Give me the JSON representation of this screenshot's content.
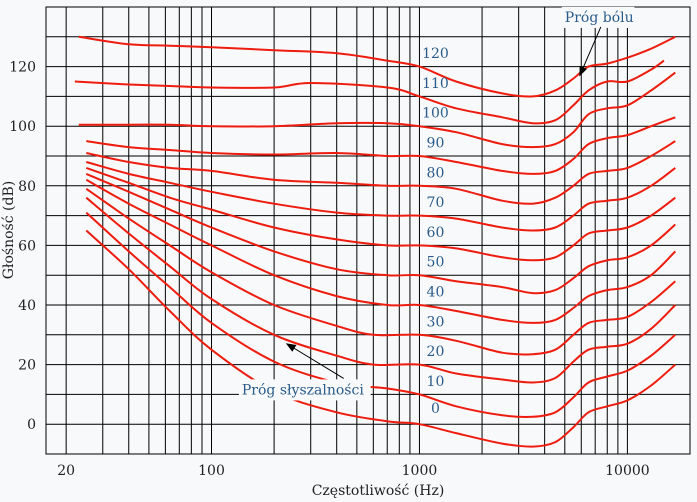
{
  "chart_data": {
    "type": "line",
    "title": "",
    "xlabel": "Częstotliwość (Hz)",
    "ylabel": "Głośność (dB)",
    "x_scale": "log",
    "xlim": [
      16,
      20000
    ],
    "ylim": [
      -10,
      140
    ],
    "x_ticks": [
      {
        "value": 20,
        "label": "20"
      },
      {
        "value": 100,
        "label": "100"
      },
      {
        "value": 1000,
        "label": "1000"
      },
      {
        "value": 10000,
        "label": "10000"
      }
    ],
    "y_ticks": [
      {
        "value": 0,
        "label": "0"
      },
      {
        "value": 20,
        "label": "20"
      },
      {
        "value": 40,
        "label": "40"
      },
      {
        "value": 60,
        "label": "60"
      },
      {
        "value": 80,
        "label": "80"
      },
      {
        "value": 100,
        "label": "100"
      },
      {
        "value": 120,
        "label": "120"
      }
    ],
    "grid": true,
    "line_color": "#ee1c0e",
    "label_color": "#2a5b8a",
    "series": [
      {
        "name": "0",
        "label_at": [
          1000,
          2.5
        ],
        "points": [
          [
            25,
            65
          ],
          [
            40,
            52
          ],
          [
            63,
            38
          ],
          [
            100,
            25
          ],
          [
            200,
            11
          ],
          [
            400,
            4
          ],
          [
            700,
            1
          ],
          [
            1000,
            0
          ],
          [
            1500,
            -3
          ],
          [
            2500,
            -6.5
          ],
          [
            3500,
            -7.5
          ],
          [
            4500,
            -6
          ],
          [
            5500,
            -1
          ],
          [
            6500,
            4
          ],
          [
            8000,
            6
          ],
          [
            10000,
            8
          ],
          [
            13000,
            13
          ],
          [
            17000,
            20
          ]
        ]
      },
      {
        "name": "10",
        "label_at": [
          1000,
          11.5
        ],
        "points": [
          [
            25,
            71
          ],
          [
            40,
            58
          ],
          [
            63,
            46
          ],
          [
            100,
            34
          ],
          [
            200,
            21
          ],
          [
            400,
            14
          ],
          [
            700,
            12
          ],
          [
            1000,
            10
          ],
          [
            1500,
            6
          ],
          [
            2500,
            3
          ],
          [
            3500,
            2.5
          ],
          [
            4500,
            4
          ],
          [
            5500,
            9
          ],
          [
            6500,
            14
          ],
          [
            8000,
            16
          ],
          [
            10000,
            18
          ],
          [
            13000,
            23
          ],
          [
            17000,
            30
          ]
        ]
      },
      {
        "name": "20",
        "label_at": [
          1000,
          21.5
        ],
        "points": [
          [
            25,
            76
          ],
          [
            40,
            64
          ],
          [
            63,
            53
          ],
          [
            100,
            42
          ],
          [
            200,
            30
          ],
          [
            400,
            23
          ],
          [
            600,
            20
          ],
          [
            1000,
            20
          ],
          [
            1500,
            17
          ],
          [
            2500,
            15
          ],
          [
            3500,
            14
          ],
          [
            4500,
            15.5
          ],
          [
            5500,
            21
          ],
          [
            6500,
            25
          ],
          [
            8000,
            26
          ],
          [
            10000,
            27
          ],
          [
            13000,
            32
          ],
          [
            17000,
            40
          ]
        ]
      },
      {
        "name": "30",
        "label_at": [
          1000,
          31.5
        ],
        "points": [
          [
            25,
            79
          ],
          [
            40,
            69
          ],
          [
            63,
            60
          ],
          [
            100,
            51
          ],
          [
            200,
            40
          ],
          [
            400,
            33
          ],
          [
            600,
            30
          ],
          [
            1000,
            30
          ],
          [
            1500,
            28
          ],
          [
            2500,
            24
          ],
          [
            3500,
            23.5
          ],
          [
            4500,
            25
          ],
          [
            5500,
            30
          ],
          [
            6500,
            34
          ],
          [
            8000,
            35
          ],
          [
            10000,
            36
          ],
          [
            13000,
            41
          ],
          [
            17000,
            48
          ]
        ]
      },
      {
        "name": "40",
        "label_at": [
          1000,
          41.5
        ],
        "points": [
          [
            25,
            82
          ],
          [
            40,
            74
          ],
          [
            63,
            67
          ],
          [
            100,
            60
          ],
          [
            200,
            50
          ],
          [
            400,
            43
          ],
          [
            700,
            40
          ],
          [
            1000,
            40
          ],
          [
            1500,
            38
          ],
          [
            2500,
            35
          ],
          [
            3500,
            34
          ],
          [
            4500,
            35
          ],
          [
            5500,
            39
          ],
          [
            6500,
            43
          ],
          [
            8000,
            45
          ],
          [
            10000,
            46
          ],
          [
            13000,
            50
          ],
          [
            17000,
            58
          ]
        ]
      },
      {
        "name": "50",
        "label_at": [
          1000,
          51.5
        ],
        "points": [
          [
            25,
            84
          ],
          [
            40,
            78
          ],
          [
            63,
            72
          ],
          [
            100,
            66
          ],
          [
            200,
            58
          ],
          [
            400,
            52
          ],
          [
            700,
            50
          ],
          [
            1000,
            50
          ],
          [
            1500,
            48
          ],
          [
            2500,
            46
          ],
          [
            3500,
            44
          ],
          [
            4500,
            45
          ],
          [
            5500,
            49
          ],
          [
            6500,
            53
          ],
          [
            8000,
            55
          ],
          [
            10000,
            56
          ],
          [
            13000,
            60
          ],
          [
            17000,
            67
          ]
        ]
      },
      {
        "name": "60",
        "label_at": [
          1000,
          61.5
        ],
        "points": [
          [
            25,
            86
          ],
          [
            40,
            81
          ],
          [
            63,
            76
          ],
          [
            100,
            72
          ],
          [
            200,
            66
          ],
          [
            400,
            62
          ],
          [
            700,
            60
          ],
          [
            1000,
            60
          ],
          [
            1500,
            59
          ],
          [
            2500,
            56
          ],
          [
            3500,
            55
          ],
          [
            4500,
            56
          ],
          [
            5500,
            60
          ],
          [
            6500,
            64
          ],
          [
            8000,
            65
          ],
          [
            10000,
            66
          ],
          [
            13000,
            70
          ],
          [
            17000,
            76
          ]
        ]
      },
      {
        "name": "70",
        "label_at": [
          1000,
          71.5
        ],
        "points": [
          [
            25,
            88
          ],
          [
            40,
            84
          ],
          [
            63,
            81
          ],
          [
            100,
            78
          ],
          [
            200,
            74
          ],
          [
            400,
            71
          ],
          [
            700,
            70
          ],
          [
            1000,
            70
          ],
          [
            1500,
            69
          ],
          [
            2500,
            66
          ],
          [
            3500,
            65
          ],
          [
            4500,
            66
          ],
          [
            5500,
            70
          ],
          [
            6500,
            74
          ],
          [
            8000,
            75
          ],
          [
            10000,
            76
          ],
          [
            13000,
            80
          ],
          [
            17000,
            86
          ]
        ]
      },
      {
        "name": "80",
        "label_at": [
          1000,
          81.5
        ],
        "points": [
          [
            25,
            91
          ],
          [
            40,
            88
          ],
          [
            63,
            86
          ],
          [
            100,
            85
          ],
          [
            200,
            82
          ],
          [
            400,
            81
          ],
          [
            700,
            80
          ],
          [
            1000,
            80
          ],
          [
            1500,
            79
          ],
          [
            2500,
            75
          ],
          [
            3500,
            74
          ],
          [
            4500,
            76
          ],
          [
            5500,
            80
          ],
          [
            6500,
            84
          ],
          [
            8000,
            85
          ],
          [
            10000,
            86
          ],
          [
            13000,
            90
          ],
          [
            17000,
            95
          ]
        ]
      },
      {
        "name": "90",
        "label_at": [
          1000,
          91.5
        ],
        "points": [
          [
            25,
            95
          ],
          [
            40,
            93
          ],
          [
            63,
            92
          ],
          [
            100,
            91
          ],
          [
            200,
            90.5
          ],
          [
            400,
            91
          ],
          [
            700,
            90
          ],
          [
            1000,
            90
          ],
          [
            1500,
            88
          ],
          [
            2500,
            85
          ],
          [
            3500,
            84
          ],
          [
            4500,
            85
          ],
          [
            5500,
            89
          ],
          [
            6500,
            94
          ],
          [
            8000,
            96
          ],
          [
            10000,
            97
          ],
          [
            13000,
            100
          ],
          [
            17000,
            103
          ]
        ]
      },
      {
        "name": "100",
        "label_at": [
          1000,
          101.5
        ],
        "points": [
          [
            23,
            100.5
          ],
          [
            40,
            100.5
          ],
          [
            63,
            100.5
          ],
          [
            100,
            100
          ],
          [
            200,
            100
          ],
          [
            400,
            101
          ],
          [
            700,
            101
          ],
          [
            1000,
            100
          ],
          [
            1500,
            98
          ],
          [
            2500,
            94
          ],
          [
            3500,
            93
          ],
          [
            4500,
            94
          ],
          [
            5500,
            98
          ],
          [
            6500,
            104
          ],
          [
            8000,
            106
          ],
          [
            10000,
            107
          ],
          [
            13000,
            112
          ],
          [
            17000,
            118
          ]
        ]
      },
      {
        "name": "110",
        "label_at": [
          1000,
          111.5
        ],
        "points": [
          [
            22,
            115
          ],
          [
            40,
            114
          ],
          [
            63,
            113.5
          ],
          [
            100,
            113
          ],
          [
            200,
            113
          ],
          [
            300,
            114.5
          ],
          [
            700,
            113
          ],
          [
            1000,
            110
          ],
          [
            1500,
            106
          ],
          [
            2500,
            103
          ],
          [
            3500,
            101
          ],
          [
            4500,
            102
          ],
          [
            5500,
            107
          ],
          [
            6500,
            112
          ],
          [
            8000,
            115
          ],
          [
            10000,
            115
          ],
          [
            13000,
            119
          ],
          [
            15000,
            122
          ]
        ]
      },
      {
        "name": "120",
        "label_at": [
          1000,
          121.5
        ],
        "points": [
          [
            23,
            130
          ],
          [
            40,
            127.5
          ],
          [
            63,
            127
          ],
          [
            100,
            126.5
          ],
          [
            200,
            125.5
          ],
          [
            400,
            124.5
          ],
          [
            700,
            122
          ],
          [
            1000,
            120
          ],
          [
            1500,
            115
          ],
          [
            2500,
            111
          ],
          [
            3500,
            110
          ],
          [
            4500,
            112
          ],
          [
            5500,
            116
          ],
          [
            6500,
            120
          ],
          [
            8000,
            121
          ],
          [
            10000,
            123
          ],
          [
            13000,
            126
          ],
          [
            17000,
            130
          ]
        ]
      }
    ],
    "annotations": [
      {
        "text": "Próg bólu",
        "text_at": [
          5000,
          135
        ],
        "arrow_to": [
          5900,
          117
        ]
      },
      {
        "text": "Próg słyszalności",
        "text_at": [
          140,
          10
        ],
        "arrow_to": [
          230,
          27
        ]
      }
    ]
  }
}
